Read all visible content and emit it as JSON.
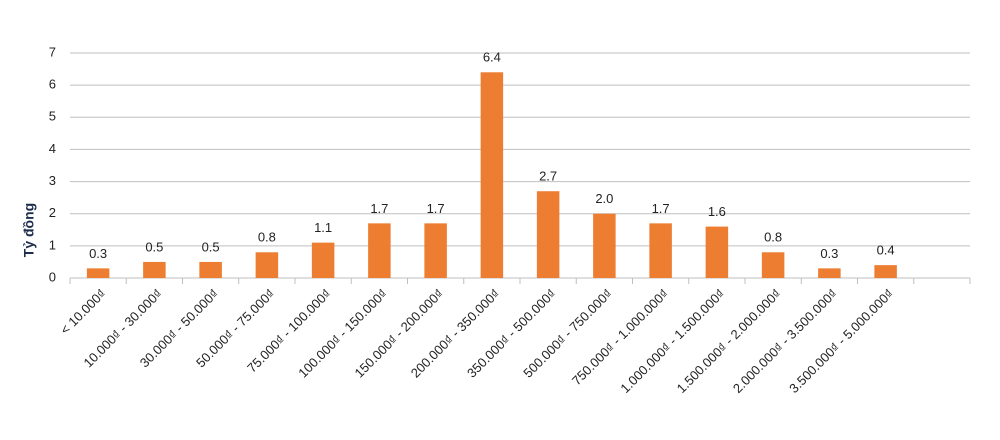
{
  "chart_data": {
    "type": "bar",
    "y_label": "Tỷ đồng",
    "categories": [
      "< 10.000₫",
      "10.000₫ - 30.000₫",
      "30.000₫ - 50.000₫",
      "50.000₫ - 75.000₫",
      "75.000₫ - 100.000₫",
      "100.000₫ - 150.000₫",
      "150.000₫ - 200.000₫",
      "200.000₫ - 350.000₫",
      "350.000₫ - 500.000₫",
      "500.000₫ - 750.000₫",
      "750.000₫ - 1.000.000₫",
      "1.000.000₫ - 1.500.000₫",
      "1.500.000₫ - 2.000.000₫",
      "2.000.000₫ - 3.500.000₫",
      "3.500.000₫ - 5.000.000₫",
      null
    ],
    "values": [
      0.3,
      0.5,
      0.5,
      0.8,
      1.1,
      1.7,
      1.7,
      6.4,
      2.7,
      2.0,
      1.7,
      1.6,
      0.8,
      0.3,
      0.4,
      null
    ],
    "value_labels": [
      "0.3",
      "0.5",
      "0.5",
      "0.8",
      "1.1",
      "1.7",
      "1.7",
      "6.4",
      "2.7",
      "2.0",
      "1.7",
      "1.6",
      "0.8",
      "0.3",
      "0.4",
      null
    ],
    "color": "#ed7d31",
    "ylim": [
      0,
      7
    ],
    "yticks": [
      0,
      1,
      2,
      3,
      4,
      5,
      6,
      7
    ],
    "grid": true
  }
}
